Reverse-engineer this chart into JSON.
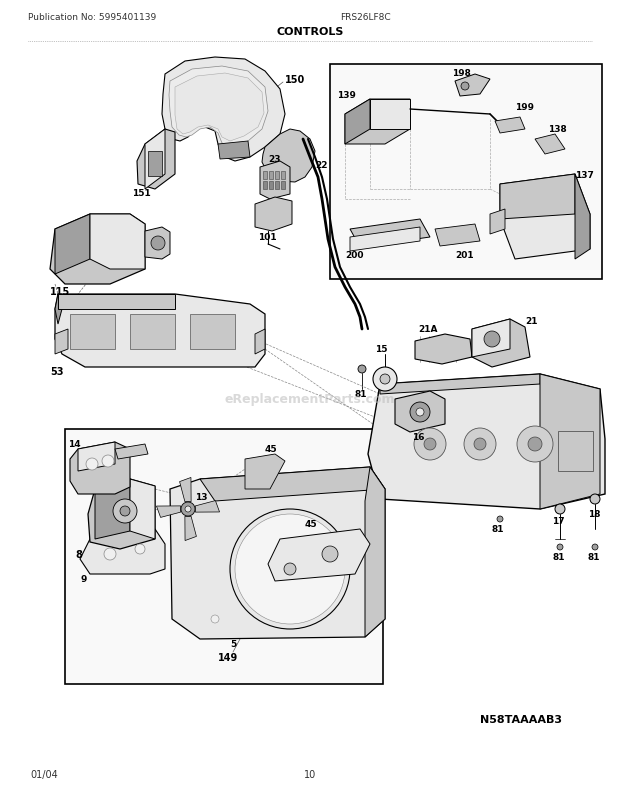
{
  "title": "CONTROLS",
  "pub_no": "Publication No: 5995401139",
  "model": "FRS26LF8C",
  "diagram_id": "N58TAAAAB3",
  "date": "01/04",
  "page": "10",
  "bg_color": "#ffffff",
  "line_color": "#000000",
  "gray_light": "#e0e0e0",
  "gray_mid": "#c0c0c0",
  "gray_dark": "#909090"
}
